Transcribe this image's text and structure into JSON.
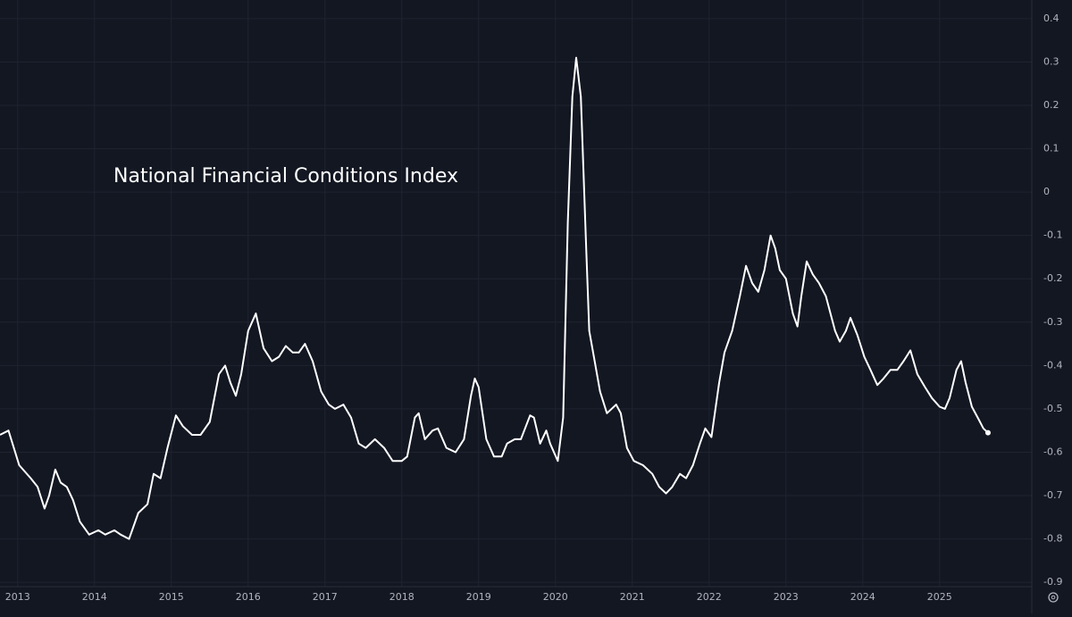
{
  "chart_data": {
    "type": "line",
    "title": "National Financial Conditions Index",
    "x": [
      2012.77,
      2012.88,
      2013.02,
      2013.17,
      2013.26,
      2013.35,
      2013.41,
      2013.49,
      2013.56,
      2013.64,
      2013.72,
      2013.81,
      2013.93,
      2014.05,
      2014.14,
      2014.26,
      2014.34,
      2014.45,
      2014.57,
      2014.69,
      2014.77,
      2014.86,
      2014.95,
      2015.06,
      2015.15,
      2015.27,
      2015.38,
      2015.5,
      2015.62,
      2015.7,
      2015.77,
      2015.84,
      2015.91,
      2016.0,
      2016.1,
      2016.2,
      2016.31,
      2016.4,
      2016.49,
      2016.58,
      2016.66,
      2016.74,
      2016.84,
      2016.95,
      2017.05,
      2017.13,
      2017.24,
      2017.34,
      2017.44,
      2017.53,
      2017.65,
      2017.77,
      2017.88,
      2018.0,
      2018.07,
      2018.17,
      2018.22,
      2018.3,
      2018.4,
      2018.47,
      2018.58,
      2018.7,
      2018.81,
      2018.9,
      2018.95,
      2019.0,
      2019.1,
      2019.2,
      2019.3,
      2019.37,
      2019.47,
      2019.55,
      2019.67,
      2019.72,
      2019.8,
      2019.88,
      2019.93,
      2020.03,
      2020.1,
      2020.16,
      2020.22,
      2020.27,
      2020.33,
      2020.4,
      2020.44,
      2020.5,
      2020.58,
      2020.67,
      2020.79,
      2020.85,
      2020.93,
      2021.02,
      2021.14,
      2021.26,
      2021.35,
      2021.44,
      2021.52,
      2021.62,
      2021.7,
      2021.79,
      2021.88,
      2021.95,
      2022.03,
      2022.13,
      2022.2,
      2022.3,
      2022.4,
      2022.48,
      2022.56,
      2022.64,
      2022.72,
      2022.8,
      2022.86,
      2022.92,
      2023.0,
      2023.09,
      2023.15,
      2023.2,
      2023.27,
      2023.35,
      2023.43,
      2023.52,
      2023.64,
      2023.7,
      2023.78,
      2023.84,
      2023.93,
      2024.02,
      2024.1,
      2024.19,
      2024.27,
      2024.36,
      2024.45,
      2024.53,
      2024.62,
      2024.71,
      2024.81,
      2024.9,
      2025.0,
      2025.07,
      2025.13,
      2025.22,
      2025.28,
      2025.34,
      2025.42,
      2025.51,
      2025.57,
      2025.63
    ],
    "series": [
      {
        "color": "#ffffff",
        "values": [
          -0.56,
          -0.55,
          -0.63,
          -0.66,
          -0.68,
          -0.73,
          -0.7,
          -0.64,
          -0.67,
          -0.68,
          -0.71,
          -0.76,
          -0.79,
          -0.78,
          -0.79,
          -0.78,
          -0.79,
          -0.8,
          -0.74,
          -0.72,
          -0.65,
          -0.66,
          -0.59,
          -0.515,
          -0.54,
          -0.56,
          -0.56,
          -0.53,
          -0.42,
          -0.4,
          -0.44,
          -0.47,
          -0.42,
          -0.32,
          -0.28,
          -0.36,
          -0.39,
          -0.38,
          -0.355,
          -0.37,
          -0.37,
          -0.35,
          -0.39,
          -0.46,
          -0.49,
          -0.5,
          -0.49,
          -0.52,
          -0.58,
          -0.59,
          -0.57,
          -0.59,
          -0.62,
          -0.62,
          -0.61,
          -0.52,
          -0.51,
          -0.57,
          -0.55,
          -0.545,
          -0.59,
          -0.6,
          -0.57,
          -0.47,
          -0.43,
          -0.45,
          -0.57,
          -0.61,
          -0.61,
          -0.58,
          -0.57,
          -0.57,
          -0.515,
          -0.52,
          -0.58,
          -0.55,
          -0.58,
          -0.62,
          -0.52,
          -0.07,
          0.22,
          0.31,
          0.22,
          -0.13,
          -0.32,
          -0.38,
          -0.46,
          -0.51,
          -0.49,
          -0.51,
          -0.59,
          -0.62,
          -0.63,
          -0.65,
          -0.68,
          -0.695,
          -0.68,
          -0.65,
          -0.66,
          -0.63,
          -0.58,
          -0.545,
          -0.565,
          -0.44,
          -0.37,
          -0.32,
          -0.24,
          -0.17,
          -0.21,
          -0.23,
          -0.18,
          -0.1,
          -0.13,
          -0.18,
          -0.2,
          -0.28,
          -0.31,
          -0.24,
          -0.16,
          -0.19,
          -0.21,
          -0.24,
          -0.32,
          -0.345,
          -0.32,
          -0.29,
          -0.33,
          -0.38,
          -0.41,
          -0.445,
          -0.43,
          -0.41,
          -0.41,
          -0.39,
          -0.365,
          -0.42,
          -0.45,
          -0.475,
          -0.495,
          -0.5,
          -0.475,
          -0.41,
          -0.39,
          -0.44,
          -0.495,
          -0.525,
          -0.545,
          -0.555
        ]
      }
    ],
    "xlim": [
      2012.77,
      2026.2
    ],
    "xticks": [
      2013,
      2014,
      2015,
      2016,
      2017,
      2018,
      2019,
      2020,
      2021,
      2022,
      2023,
      2024,
      2025
    ],
    "ylim": [
      -0.91,
      0.443
    ],
    "yticks": [
      0.4,
      0.3,
      0.2,
      0.1,
      0,
      -0.1,
      -0.2,
      -0.3,
      -0.4,
      -0.5,
      -0.6,
      -0.7,
      -0.8,
      -0.9
    ],
    "grid": true
  }
}
